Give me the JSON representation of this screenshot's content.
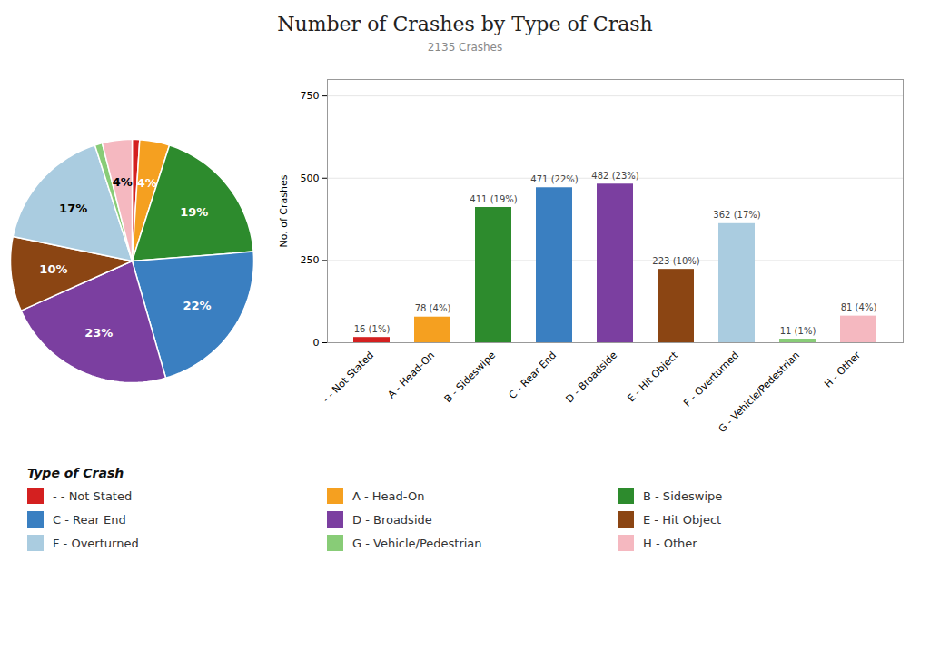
{
  "chart_data": [
    {
      "type": "pie",
      "title": "Number of Crashes by Type of Crash",
      "subtitle": "2135 Crashes",
      "categories": [
        "- - Not Stated",
        "A - Head-On",
        "B - Sideswipe",
        "C - Rear End",
        "D - Broadside",
        "E - Hit Object",
        "F - Overturned",
        "G - Vehicle/Pedestrian",
        "H - Other"
      ],
      "values": [
        1,
        4,
        19,
        22,
        23,
        10,
        17,
        1,
        4
      ],
      "value_labels": [
        null,
        "4%",
        "19%",
        "22%",
        "23%",
        "10%",
        "17%",
        null,
        "4%"
      ],
      "colors": [
        "#d42020",
        "#f5a020",
        "#2d8b2d",
        "#3a7fc1",
        "#7b3fa0",
        "#8b4513",
        "#aacce0",
        "#88cc77",
        "#f5b8c0"
      ],
      "data_labels": true,
      "legend": "bottom",
      "legend_title": "Type of Crash"
    },
    {
      "type": "bar",
      "categories": [
        "- - Not Stated",
        "A - Head-On",
        "B - Sideswipe",
        "C - Rear End",
        "D - Broadside",
        "E - Hit Object",
        "F - Overturned",
        "G - Vehicle/Pedestrian",
        "H - Other"
      ],
      "values": [
        16,
        78,
        411,
        471,
        482,
        223,
        362,
        11,
        81
      ],
      "value_labels": [
        "16 (1%)",
        "78 (4%)",
        "411 (19%)",
        "471 (22%)",
        "482 (23%)",
        "223 (10%)",
        "362 (17%)",
        "11 (1%)",
        "81 (4%)"
      ],
      "colors": [
        "#d42020",
        "#f5a020",
        "#2d8b2d",
        "#3a7fc1",
        "#7b3fa0",
        "#8b4513",
        "#aacce0",
        "#88cc77",
        "#f5b8c0"
      ],
      "ylabel": "No. of Crashes",
      "ylim": [
        0,
        800
      ],
      "yticks": [
        0,
        250,
        500,
        750
      ],
      "grid": true,
      "data_labels": true
    }
  ]
}
